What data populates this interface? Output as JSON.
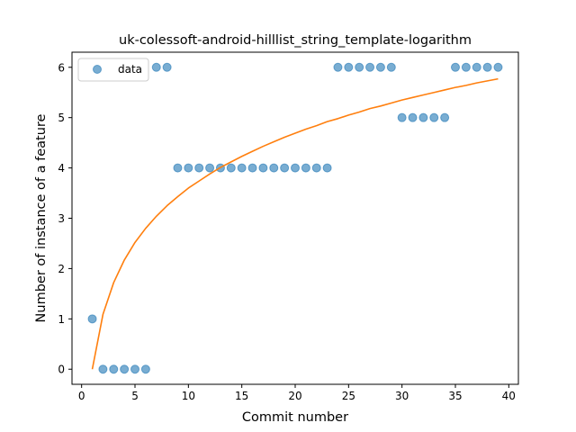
{
  "chart_data": {
    "type": "scatter",
    "title": "uk-colessoft-android-hilllist_string_template-logarithm",
    "xlabel": "Commit number",
    "ylabel": "Number of instance of a feature",
    "xlim": [
      -0.9,
      40.9
    ],
    "ylim": [
      -0.3,
      6.3
    ],
    "xticks": [
      0,
      5,
      10,
      15,
      20,
      25,
      30,
      35,
      40
    ],
    "yticks": [
      0,
      1,
      2,
      3,
      4,
      5,
      6
    ],
    "legend": {
      "position": "top-left",
      "entries": [
        "data"
      ]
    },
    "grid": false,
    "series": [
      {
        "name": "data",
        "kind": "scatter",
        "color": "#1f77b4",
        "x": [
          1,
          2,
          3,
          4,
          5,
          6,
          7,
          8,
          9,
          10,
          11,
          12,
          13,
          14,
          15,
          16,
          17,
          18,
          19,
          20,
          21,
          22,
          23,
          24,
          25,
          26,
          27,
          28,
          29,
          30,
          31,
          32,
          33,
          34,
          35,
          36,
          37,
          38,
          39
        ],
        "y": [
          1,
          0,
          0,
          0,
          0,
          0,
          6,
          6,
          4,
          4,
          4,
          4,
          4,
          4,
          4,
          4,
          4,
          4,
          4,
          4,
          4,
          4,
          4,
          6,
          6,
          6,
          6,
          6,
          6,
          5,
          5,
          5,
          5,
          5,
          6,
          6,
          6,
          6,
          6
        ]
      },
      {
        "kind": "line",
        "color": "#ff7f0e",
        "x": [
          1,
          2,
          3,
          4,
          5,
          6,
          7,
          8,
          9,
          10,
          11,
          12,
          13,
          14,
          15,
          16,
          17,
          18,
          19,
          20,
          21,
          22,
          23,
          24,
          25,
          26,
          27,
          28,
          29,
          30,
          31,
          32,
          33,
          34,
          35,
          36,
          37,
          38,
          39
        ],
        "y": [
          0.0,
          1.09,
          1.72,
          2.17,
          2.52,
          2.8,
          3.04,
          3.25,
          3.43,
          3.6,
          3.74,
          3.88,
          4.01,
          4.12,
          4.23,
          4.33,
          4.43,
          4.52,
          4.61,
          4.69,
          4.77,
          4.84,
          4.92,
          4.98,
          5.05,
          5.11,
          5.18,
          5.23,
          5.29,
          5.35,
          5.4,
          5.45,
          5.5,
          5.55,
          5.6,
          5.64,
          5.69,
          5.73,
          5.77
        ]
      }
    ]
  }
}
